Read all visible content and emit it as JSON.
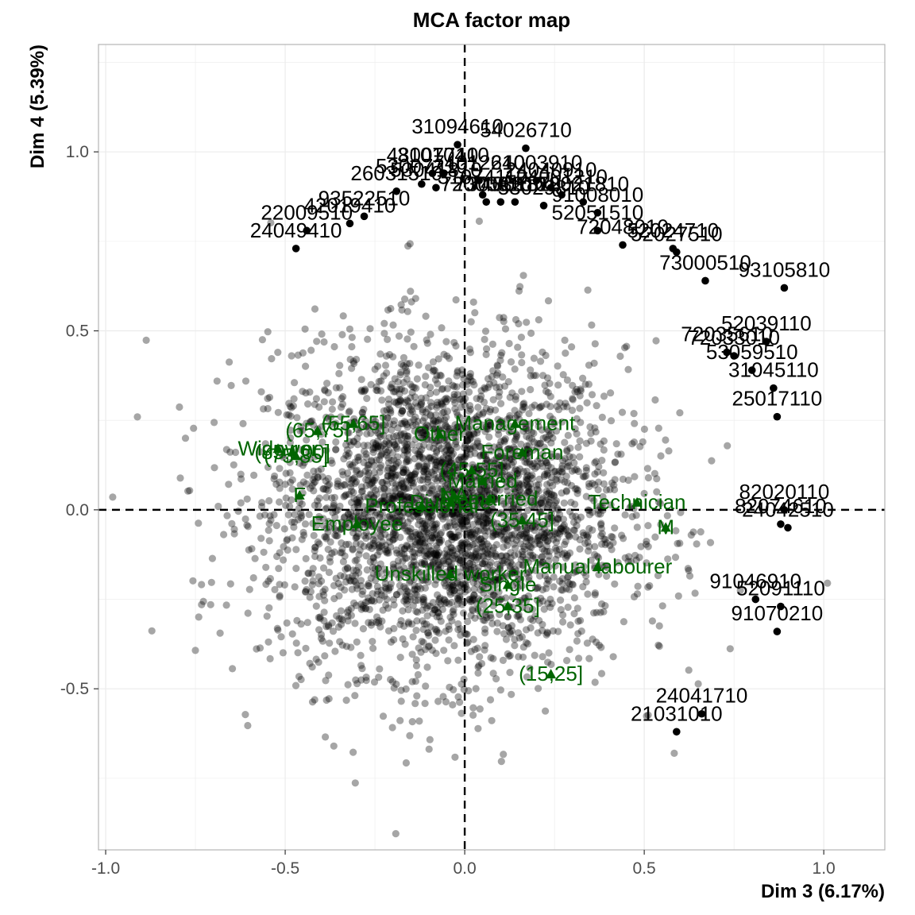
{
  "chart_data": {
    "type": "scatter",
    "title": "MCA factor map",
    "xlabel": "Dim 3 (6.17%)",
    "ylabel": "Dim 4 (5.39%)",
    "xlim": [
      -1.02,
      1.17
    ],
    "ylim": [
      -0.95,
      1.3
    ],
    "x_ticks": [
      -1.0,
      -0.5,
      0.0,
      0.5,
      1.0
    ],
    "x_tick_labels": [
      "-1.0",
      "-0.5",
      "0.0",
      "0.5",
      "1.0"
    ],
    "y_ticks": [
      -0.5,
      0.0,
      0.5,
      1.0
    ],
    "y_tick_labels": [
      "-0.5",
      "0.0",
      "0.5",
      "1.0"
    ],
    "grid": true,
    "reference_lines": {
      "x": 0,
      "y": 0,
      "style": "dashed"
    },
    "colors": {
      "individuals": "#000000",
      "variables": "#006400",
      "grid": "#ebebeb",
      "panel_border": "#b3b3b3"
    },
    "background_cloud": {
      "x_center": -0.05,
      "y_center": 0.0,
      "x_spread": 0.45,
      "y_spread": 0.3,
      "opacity": 0.35
    },
    "labeled_individuals": [
      {
        "label": "31094610",
        "x": -0.02,
        "y": 1.02
      },
      {
        "label": "54026710",
        "x": 0.17,
        "y": 1.01
      },
      {
        "label": "74012610",
        "x": 0.04,
        "y": 0.92
      },
      {
        "label": "24003910",
        "x": 0.2,
        "y": 0.92
      },
      {
        "label": "31074110",
        "x": 0.05,
        "y": 0.88
      },
      {
        "label": "24040910",
        "x": 0.24,
        "y": 0.9
      },
      {
        "label": "72000910",
        "x": 0.06,
        "y": 0.86
      },
      {
        "label": "73053310",
        "x": 0.1,
        "y": 0.86
      },
      {
        "label": "74001810",
        "x": 0.14,
        "y": 0.86
      },
      {
        "label": "24001210",
        "x": 0.27,
        "y": 0.88
      },
      {
        "label": "72021810",
        "x": 0.33,
        "y": 0.86
      },
      {
        "label": "53029810",
        "x": 0.22,
        "y": 0.85
      },
      {
        "label": "91008010",
        "x": 0.37,
        "y": 0.83
      },
      {
        "label": "52051510",
        "x": 0.37,
        "y": 0.78
      },
      {
        "label": "72048010",
        "x": 0.44,
        "y": 0.74
      },
      {
        "label": "52024710",
        "x": 0.58,
        "y": 0.73
      },
      {
        "label": "52027510",
        "x": 0.59,
        "y": 0.72
      },
      {
        "label": "73000510",
        "x": 0.67,
        "y": 0.64
      },
      {
        "label": "93105810",
        "x": 0.89,
        "y": 0.62
      },
      {
        "label": "52039110",
        "x": 0.84,
        "y": 0.47
      },
      {
        "label": "72035610",
        "x": 0.73,
        "y": 0.44
      },
      {
        "label": "72033010",
        "x": 0.75,
        "y": 0.43
      },
      {
        "label": "53059510",
        "x": 0.8,
        "y": 0.39
      },
      {
        "label": "31045110",
        "x": 0.86,
        "y": 0.34
      },
      {
        "label": "25017110",
        "x": 0.87,
        "y": 0.26
      },
      {
        "label": "82020110",
        "x": 0.89,
        "y": 0.0
      },
      {
        "label": "82074610",
        "x": 0.88,
        "y": -0.04
      },
      {
        "label": "24042510",
        "x": 0.9,
        "y": -0.05
      },
      {
        "label": "91046910",
        "x": 0.81,
        "y": -0.25
      },
      {
        "label": "52091110",
        "x": 0.88,
        "y": -0.27
      },
      {
        "label": "91070210",
        "x": 0.87,
        "y": -0.34
      },
      {
        "label": "24041710",
        "x": 0.66,
        "y": -0.57
      },
      {
        "label": "21031010",
        "x": 0.59,
        "y": -0.62
      },
      {
        "label": "48007710",
        "x": -0.09,
        "y": 0.94
      },
      {
        "label": "31010410",
        "x": -0.06,
        "y": 0.94
      },
      {
        "label": "53007210",
        "x": -0.12,
        "y": 0.91
      },
      {
        "label": "53041810",
        "x": -0.08,
        "y": 0.9
      },
      {
        "label": "26031510",
        "x": -0.19,
        "y": 0.89
      },
      {
        "label": "42019410",
        "x": -0.32,
        "y": 0.8
      },
      {
        "label": "93522510",
        "x": -0.28,
        "y": 0.82
      },
      {
        "label": "22009510",
        "x": -0.44,
        "y": 0.78
      },
      {
        "label": "24049410",
        "x": -0.47,
        "y": 0.73
      }
    ],
    "variable_categories": [
      {
        "label": "(75,85]",
        "x": -0.47,
        "y": 0.15
      },
      {
        "label": "(65,75]",
        "x": -0.41,
        "y": 0.22
      },
      {
        "label": "(55,65]",
        "x": -0.31,
        "y": 0.24
      },
      {
        "label": "Other",
        "x": -0.07,
        "y": 0.21
      },
      {
        "label": "Widower",
        "x": -0.52,
        "y": 0.17
      },
      {
        "label": "(85,100]",
        "x": -0.48,
        "y": 0.16
      },
      {
        "label": "Management",
        "x": 0.14,
        "y": 0.24
      },
      {
        "label": "Foreman",
        "x": 0.16,
        "y": 0.16
      },
      {
        "label": "(45,55]",
        "x": 0.02,
        "y": 0.11
      },
      {
        "label": "Married",
        "x": 0.05,
        "y": 0.08
      },
      {
        "label": "Remarried",
        "x": 0.07,
        "y": 0.03
      },
      {
        "label": "F",
        "x": -0.46,
        "y": 0.04
      },
      {
        "label": "Professional",
        "x": -0.12,
        "y": 0.01
      },
      {
        "label": "Divorcee",
        "x": -0.04,
        "y": 0.02
      },
      {
        "label": "NA",
        "x": -0.03,
        "y": 0.04
      },
      {
        "label": "Technician",
        "x": 0.48,
        "y": 0.02
      },
      {
        "label": "Employee",
        "x": -0.3,
        "y": -0.04
      },
      {
        "label": "(35,45]",
        "x": 0.16,
        "y": -0.03
      },
      {
        "label": "M",
        "x": 0.56,
        "y": -0.05
      },
      {
        "label": "Manual labourer",
        "x": 0.37,
        "y": -0.16
      },
      {
        "label": "Unskilled worker",
        "x": -0.04,
        "y": -0.18
      },
      {
        "label": "Single",
        "x": 0.12,
        "y": -0.21
      },
      {
        "label": "(25,35]",
        "x": 0.12,
        "y": -0.27
      },
      {
        "label": "(15,25]",
        "x": 0.24,
        "y": -0.46
      }
    ]
  }
}
